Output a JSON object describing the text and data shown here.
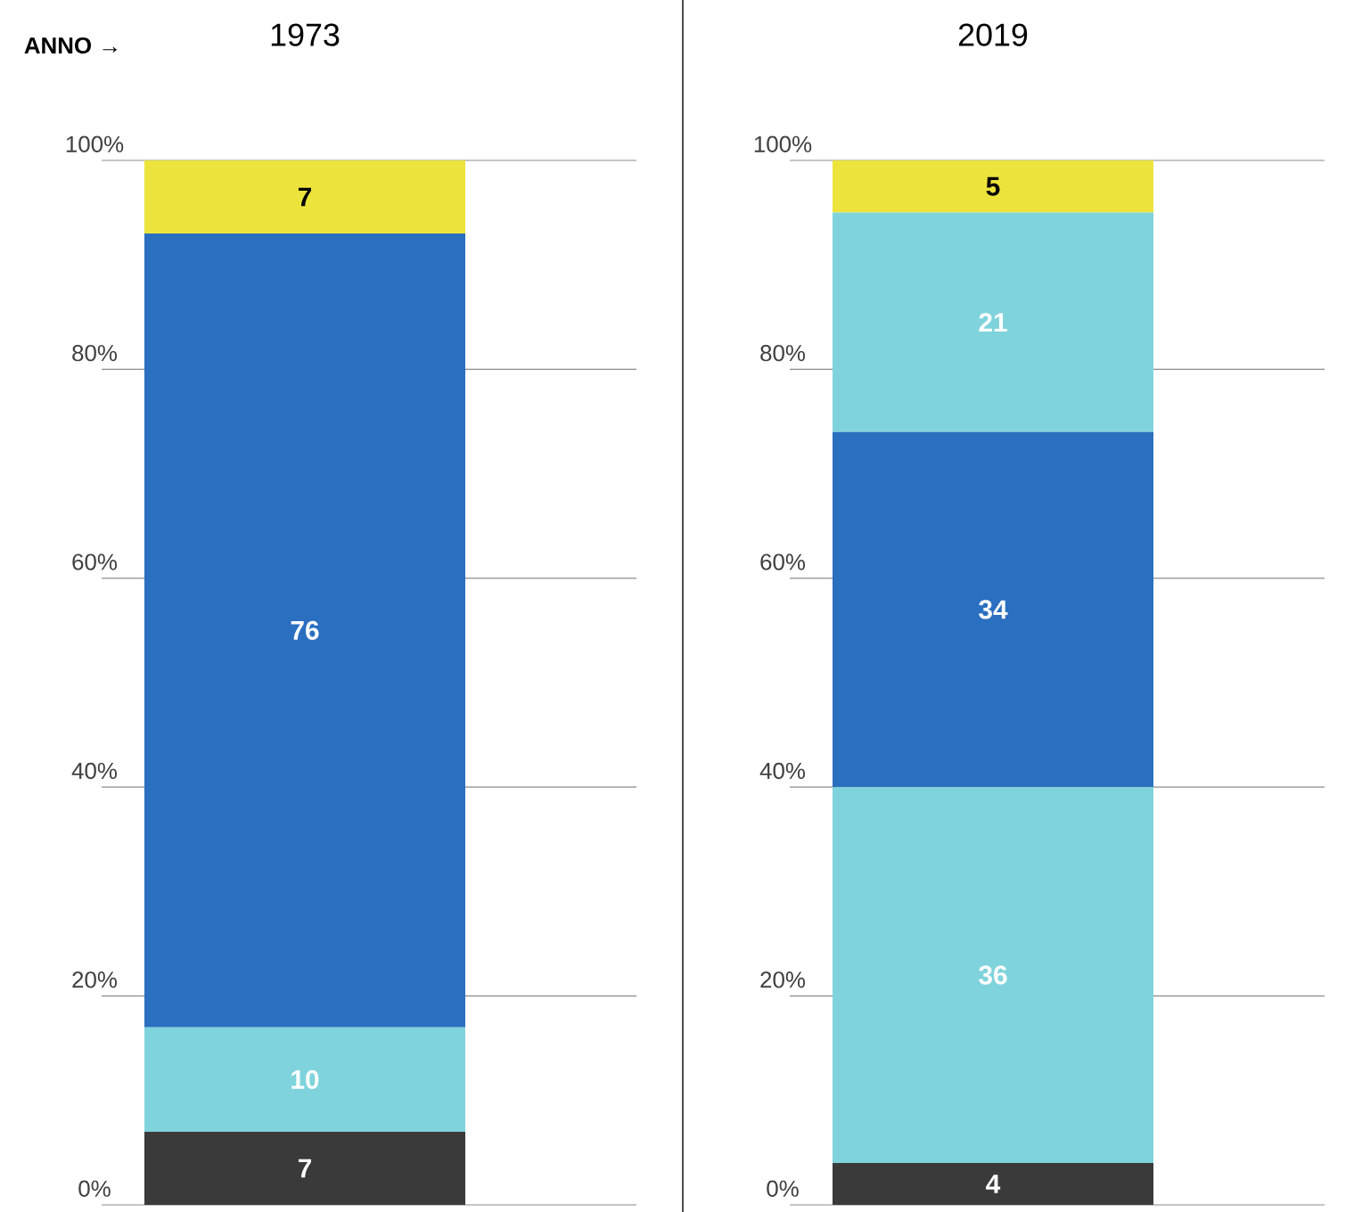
{
  "chart_data": [
    {
      "type": "bar",
      "stacked": true,
      "title": "1973",
      "annotations": [
        "ANNO →"
      ],
      "categories": [
        null
      ],
      "series": [
        {
          "color": "#3a3a3a",
          "values": [
            7
          ]
        },
        {
          "color": "#7fd3dc",
          "values": [
            10
          ]
        },
        {
          "color": "#2a6fc0",
          "values": [
            76
          ]
        },
        {
          "color": "#ece43c",
          "values": [
            7
          ]
        }
      ],
      "ylim": [
        0,
        100
      ],
      "yticks": [
        {
          "value": 0,
          "label": "0%"
        },
        {
          "value": 20,
          "label": "20%"
        },
        {
          "value": 40,
          "label": "40%"
        },
        {
          "value": 60,
          "label": "60%"
        },
        {
          "value": 80,
          "label": "80%"
        },
        {
          "value": 100,
          "label": "100%"
        }
      ],
      "grid": "y",
      "data_labels": true,
      "tick_labels": "y"
    },
    {
      "type": "bar",
      "stacked": true,
      "title": "2019",
      "categories": [
        null
      ],
      "series": [
        {
          "color": "#3a3a3a",
          "values": [
            4
          ]
        },
        {
          "color": "#7fd3dc",
          "values": [
            36
          ]
        },
        {
          "color": "#2a6fc0",
          "values": [
            34
          ]
        },
        {
          "color": "#7fd3dc",
          "values": [
            21
          ]
        },
        {
          "color": "#ece43c",
          "values": [
            5
          ]
        }
      ],
      "ylim": [
        0,
        100
      ],
      "yticks": [
        {
          "value": 0,
          "label": "0%"
        },
        {
          "value": 20,
          "label": "20%"
        },
        {
          "value": 40,
          "label": "40%"
        },
        {
          "value": 60,
          "label": "60%"
        },
        {
          "value": 80,
          "label": "80%"
        },
        {
          "value": 100,
          "label": "100%"
        }
      ],
      "grid": "y",
      "data_labels": true,
      "tick_labels": "y"
    }
  ]
}
